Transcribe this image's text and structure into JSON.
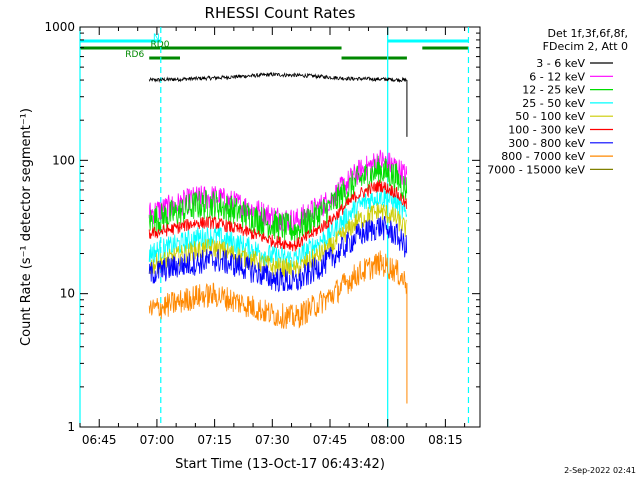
{
  "chart_data": {
    "type": "line",
    "title": "RHESSI Count Rates",
    "xlabel": "Start Time (13-Oct-17 06:43:42)",
    "ylabel": "Count Rate (s⁻¹ detector segment⁻¹)",
    "yscale": "log",
    "ylim": [
      1,
      1000
    ],
    "xlim": [
      "06:40",
      "08:24"
    ],
    "x_ticks": [
      "06:45",
      "07:00",
      "07:15",
      "07:30",
      "07:45",
      "08:00",
      "08:15"
    ],
    "y_ticks": [
      "1",
      "10",
      "100",
      "1000"
    ],
    "legend_header": [
      "Det 1f,3f,6f,8f,",
      "FDecim 2, Att 0"
    ],
    "legend_position": "top-right",
    "grid": false,
    "series": [
      {
        "name": "3 - 6 keV",
        "color": "#000000",
        "x": [
          "06:58",
          "07:05",
          "07:15",
          "07:30",
          "07:40",
          "07:50",
          "08:00",
          "08:05"
        ],
        "values": [
          400,
          405,
          415,
          440,
          430,
          410,
          405,
          400
        ]
      },
      {
        "name": "6 - 12 keV",
        "color": "#ff00ff",
        "x": [
          "06:58",
          "07:05",
          "07:10",
          "07:15",
          "07:22",
          "07:30",
          "07:36",
          "07:45",
          "07:52",
          "07:58",
          "08:02",
          "08:05"
        ],
        "values": [
          40,
          46,
          52,
          53,
          46,
          38,
          35,
          50,
          80,
          100,
          90,
          75
        ]
      },
      {
        "name": "12 - 25 keV",
        "color": "#00dd00",
        "x": [
          "06:58",
          "07:05",
          "07:10",
          "07:15",
          "07:22",
          "07:30",
          "07:36",
          "07:45",
          "07:52",
          "07:58",
          "08:02",
          "08:05"
        ],
        "values": [
          35,
          40,
          46,
          47,
          40,
          33,
          30,
          45,
          70,
          85,
          75,
          60
        ]
      },
      {
        "name": "25 - 50 keV",
        "color": "#00ffff",
        "x": [
          "06:58",
          "07:05",
          "07:10",
          "07:15",
          "07:22",
          "07:30",
          "07:36",
          "07:45",
          "07:52",
          "07:58",
          "08:02",
          "08:05"
        ],
        "values": [
          20,
          23,
          26,
          27,
          23,
          19,
          18,
          28,
          45,
          55,
          48,
          38
        ]
      },
      {
        "name": "50 - 100 keV",
        "color": "#cccc00",
        "x": [
          "06:58",
          "07:05",
          "07:10",
          "07:15",
          "07:22",
          "07:30",
          "07:36",
          "07:45",
          "07:52",
          "07:58",
          "08:02",
          "08:05"
        ],
        "values": [
          16,
          19,
          21,
          22,
          19,
          16,
          15,
          22,
          35,
          42,
          37,
          30
        ]
      },
      {
        "name": "100 - 300 keV",
        "color": "#ff0000",
        "x": [
          "06:58",
          "07:05",
          "07:10",
          "07:15",
          "07:22",
          "07:30",
          "07:36",
          "07:45",
          "07:52",
          "07:58",
          "08:02",
          "08:05"
        ],
        "values": [
          28,
          31,
          34,
          34,
          30,
          25,
          23,
          35,
          55,
          65,
          58,
          46
        ]
      },
      {
        "name": "300 - 800 keV",
        "color": "#0000ff",
        "x": [
          "06:58",
          "07:05",
          "07:10",
          "07:15",
          "07:22",
          "07:30",
          "07:36",
          "07:45",
          "07:52",
          "07:58",
          "08:02",
          "08:05"
        ],
        "values": [
          14,
          16,
          17,
          18,
          16,
          13,
          12,
          18,
          27,
          32,
          28,
          22
        ]
      },
      {
        "name": "800 - 7000 keV",
        "color": "#ff8800",
        "x": [
          "06:58",
          "07:05",
          "07:10",
          "07:15",
          "07:22",
          "07:30",
          "07:36",
          "07:45",
          "07:52",
          "07:58",
          "08:02",
          "08:05"
        ],
        "values": [
          7.5,
          8.5,
          9.5,
          9.8,
          8.5,
          7,
          6.6,
          9.5,
          14,
          17,
          15,
          12
        ]
      },
      {
        "name": "7000 - 15000 keV",
        "color": "#808000",
        "x": [],
        "values": []
      }
    ],
    "flags": [
      {
        "label": "N",
        "color": "#00ffff",
        "level": 1,
        "intervals": [
          [
            "06:40",
            "07:01"
          ],
          [
            "08:00",
            "08:21"
          ]
        ]
      },
      {
        "label": "RD0",
        "color": "#008800",
        "level": 2,
        "intervals": [
          [
            "06:40",
            "07:48"
          ],
          [
            "08:09",
            "08:21"
          ]
        ]
      },
      {
        "label": "RD6",
        "color": "#008800",
        "level": 3,
        "intervals": [
          [
            "06:58",
            "07:06"
          ],
          [
            "07:48",
            "08:05"
          ]
        ]
      }
    ],
    "vlines": [
      {
        "x": "06:40",
        "style": "solid",
        "color": "#00ffff"
      },
      {
        "x": "07:01",
        "style": "dashed",
        "color": "#00ffff"
      },
      {
        "x": "08:00",
        "style": "solid",
        "color": "#00ffff"
      },
      {
        "x": "08:21",
        "style": "dashed",
        "color": "#00ffff"
      }
    ]
  },
  "footer": {
    "timestamp": "2-Sep-2022 02:41"
  }
}
